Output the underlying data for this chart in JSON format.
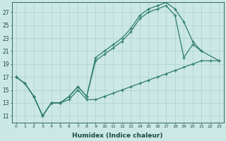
{
  "xlabel": "Humidex (Indice chaleur)",
  "bg_color": "#cce8e4",
  "grid_color": "#aad0cc",
  "line_color": "#2e7d6e",
  "xlim": [
    -0.5,
    23.5
  ],
  "ylim": [
    10.0,
    28.5
  ],
  "xticks": [
    0,
    1,
    2,
    3,
    4,
    5,
    6,
    7,
    8,
    9,
    10,
    11,
    12,
    13,
    14,
    15,
    16,
    17,
    18,
    19,
    20,
    21,
    22,
    23
  ],
  "yticks": [
    11,
    13,
    15,
    17,
    19,
    21,
    23,
    25,
    27
  ],
  "line1_x": [
    0,
    1,
    2,
    3,
    4,
    5,
    6,
    7,
    8,
    9,
    10,
    11,
    12,
    13,
    14,
    15,
    16,
    17,
    18,
    19,
    20,
    21
  ],
  "line1_y": [
    17,
    16,
    14,
    11,
    13,
    13,
    14,
    15.5,
    14,
    20,
    21,
    22,
    23,
    24.5,
    26.5,
    27.5,
    28,
    28.5,
    27.5,
    25.5,
    22.5,
    21
  ],
  "line2_x": [
    0,
    1,
    2,
    3,
    4,
    5,
    6,
    7,
    8,
    9,
    10,
    11,
    12,
    13,
    14,
    15,
    16,
    17,
    18,
    19,
    20,
    21,
    23
  ],
  "line2_y": [
    17,
    16,
    14,
    11,
    13,
    13,
    14,
    15.5,
    14,
    19.5,
    20.5,
    21.5,
    22.5,
    24,
    26,
    27,
    27.5,
    28,
    26.5,
    20,
    22,
    21,
    19.5
  ],
  "line3_x": [
    0,
    1,
    2,
    3,
    4,
    5,
    6,
    7,
    8,
    9,
    10,
    11,
    12,
    13,
    14,
    15,
    16,
    17,
    18,
    19,
    20,
    21,
    22,
    23
  ],
  "line3_y": [
    17,
    16,
    14,
    11,
    13,
    13,
    13.5,
    15,
    13.5,
    13.5,
    14,
    14.5,
    15,
    15.5,
    16,
    16.5,
    17,
    17.5,
    18,
    18.5,
    19,
    19.5,
    19.5,
    19.5
  ]
}
